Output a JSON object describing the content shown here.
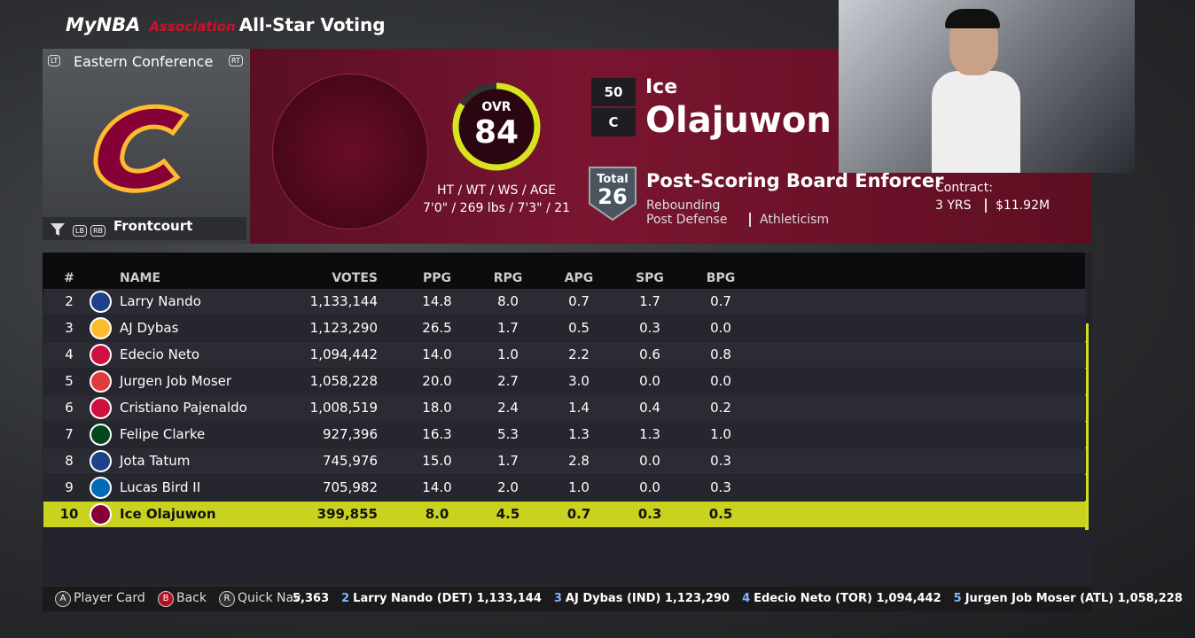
{
  "header": {
    "logo": "MyNBA",
    "mode": "Association",
    "title": "All-Star Voting"
  },
  "team_panel": {
    "lt": "LT",
    "conference": "Eastern Conference",
    "rt": "RT",
    "lb": "LB",
    "rb": "RB",
    "filter": "Frontcourt"
  },
  "player": {
    "ovr_label": "OVR",
    "ovr": 84,
    "bio_label": "HT / WT / WS / AGE",
    "bio": "7'0\" / 269 lbs / 7'3\" / 21",
    "number": "50",
    "position": "C",
    "first_name": "Ice",
    "last_name": "Olajuwon",
    "total_label": "Total",
    "total": "26",
    "archetype": "Post-Scoring Board Enforcer",
    "skills": [
      "Rebounding",
      "Post Defense",
      "Athleticism"
    ],
    "contract_label": "Contract:",
    "contract_years": "3 YRS",
    "contract_salary": "$11.92M"
  },
  "table": {
    "columns": [
      "#",
      "NAME",
      "VOTES",
      "PPG",
      "RPG",
      "APG",
      "SPG",
      "BPG"
    ],
    "rows": [
      [
        "2",
        "Larry Nando",
        "1,133,144",
        "14.8",
        "8.0",
        "0.7",
        "1.7",
        "0.7"
      ],
      [
        "3",
        "AJ Dybas",
        "1,123,290",
        "26.5",
        "1.7",
        "0.5",
        "0.3",
        "0.0"
      ],
      [
        "4",
        "Edecio Neto",
        "1,094,442",
        "14.0",
        "1.0",
        "2.2",
        "0.6",
        "0.8"
      ],
      [
        "5",
        "Jurgen  Job Moser",
        "1,058,228",
        "20.0",
        "2.7",
        "3.0",
        "0.0",
        "0.0"
      ],
      [
        "6",
        "Cristiano Pajenaldo",
        "1,008,519",
        "18.0",
        "2.4",
        "1.4",
        "0.4",
        "0.2"
      ],
      [
        "7",
        "Felipe Clarke",
        "927,396",
        "16.3",
        "5.3",
        "1.3",
        "1.3",
        "1.0"
      ],
      [
        "8",
        "Jota Tatum",
        "745,976",
        "15.0",
        "1.7",
        "2.8",
        "0.0",
        "0.3"
      ],
      [
        "9",
        "Lucas Bird II",
        "705,982",
        "14.0",
        "2.0",
        "1.0",
        "0.0",
        "0.3"
      ],
      [
        "10",
        "Ice Olajuwon",
        "399,855",
        "8.0",
        "4.5",
        "0.7",
        "0.3",
        "0.5"
      ]
    ],
    "logos": [
      "#1d428a",
      "#fdbb30",
      "#ce1141",
      "#e03a3e",
      "#ce1141",
      "#00471b",
      "#1d428a",
      "#006bb6",
      "#860038"
    ],
    "highlight": 8
  },
  "footer": {
    "buttons": [
      {
        "key": "A",
        "label": "Player Card"
      },
      {
        "key": "B",
        "label": "Back"
      },
      {
        "key": "R",
        "label": "Quick Nav"
      }
    ],
    "ticker_start": "5,363",
    "ticker": [
      {
        "rank": "2",
        "text": "Larry Nando (DET) 1,133,144"
      },
      {
        "rank": "3",
        "text": "AJ Dybas (IND) 1,123,290"
      },
      {
        "rank": "4",
        "text": "Edecio Neto (TOR) 1,094,442"
      },
      {
        "rank": "5",
        "text": "Jurgen  Job Moser (ATL) 1,058,228"
      }
    ]
  }
}
